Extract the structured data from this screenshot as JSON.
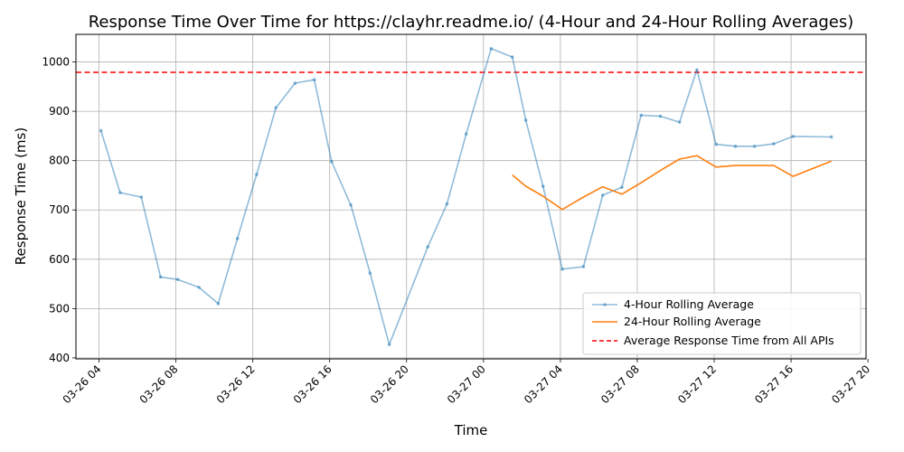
{
  "chart_data": {
    "type": "line",
    "title": "Response Time Over Time for https://clayhr.readme.io/ (4-Hour and 24-Hour Rolling Averages)",
    "xlabel": "Time",
    "ylabel": "Response Time (ms)",
    "x_ticks": [
      "03-26 04",
      "03-26 08",
      "03-26 12",
      "03-26 16",
      "03-26 20",
      "03-27 00",
      "03-27 04",
      "03-27 08",
      "03-27 12",
      "03-27 16",
      "03-27 20"
    ],
    "xlim_hours": [
      2.8,
      43.9
    ],
    "x_tick_hours": [
      4,
      8,
      12,
      16,
      20,
      24,
      28,
      32,
      36,
      40,
      44
    ],
    "ylim": [
      398,
      1056
    ],
    "y_ticks": [
      400,
      500,
      600,
      700,
      800,
      900,
      1000
    ],
    "grid": true,
    "legend_position": "lower-right",
    "series": [
      {
        "name": "4-Hour Rolling Average",
        "color": "#1f77b4",
        "style": "line-with-points",
        "opacity": 0.5,
        "points": [
          [
            4.1,
            861
          ],
          [
            5.1,
            735
          ],
          [
            6.2,
            726
          ],
          [
            7.2,
            564
          ],
          [
            8.1,
            559
          ],
          [
            9.2,
            543
          ],
          [
            10.2,
            510
          ],
          [
            11.2,
            642
          ],
          [
            12.2,
            772
          ],
          [
            13.2,
            907
          ],
          [
            14.2,
            957
          ],
          [
            15.2,
            964
          ],
          [
            16.1,
            798
          ],
          [
            17.1,
            710
          ],
          [
            18.1,
            572
          ],
          [
            19.1,
            427
          ],
          [
            21.1,
            625
          ],
          [
            22.1,
            712
          ],
          [
            23.1,
            854
          ],
          [
            24.4,
            1027
          ],
          [
            25.5,
            1010
          ],
          [
            26.2,
            882
          ],
          [
            27.1,
            748
          ],
          [
            28.1,
            580
          ],
          [
            29.2,
            585
          ],
          [
            30.2,
            730
          ],
          [
            31.2,
            746
          ],
          [
            32.2,
            892
          ],
          [
            33.2,
            890
          ],
          [
            34.2,
            878
          ],
          [
            35.1,
            984
          ],
          [
            36.1,
            833
          ],
          [
            37.1,
            829
          ],
          [
            38.1,
            829
          ],
          [
            39.1,
            834
          ],
          [
            40.1,
            849
          ],
          [
            42.1,
            848
          ]
        ]
      },
      {
        "name": "24-Hour Rolling Average",
        "color": "#ff7f0e",
        "style": "line",
        "opacity": 1,
        "points": [
          [
            25.5,
            771
          ],
          [
            26.2,
            748
          ],
          [
            27.1,
            728
          ],
          [
            28.1,
            701
          ],
          [
            29.2,
            726
          ],
          [
            30.2,
            747
          ],
          [
            31.2,
            732
          ],
          [
            32.2,
            755
          ],
          [
            33.2,
            780
          ],
          [
            34.2,
            803
          ],
          [
            35.1,
            810
          ],
          [
            36.1,
            787
          ],
          [
            37.1,
            790
          ],
          [
            38.1,
            790
          ],
          [
            39.1,
            790
          ],
          [
            40.1,
            768
          ],
          [
            42.1,
            799
          ]
        ]
      }
    ],
    "reference_line": {
      "name": "Average Response Time from All APIs",
      "value": 979,
      "color": "#ff0000",
      "style": "dashed"
    }
  }
}
